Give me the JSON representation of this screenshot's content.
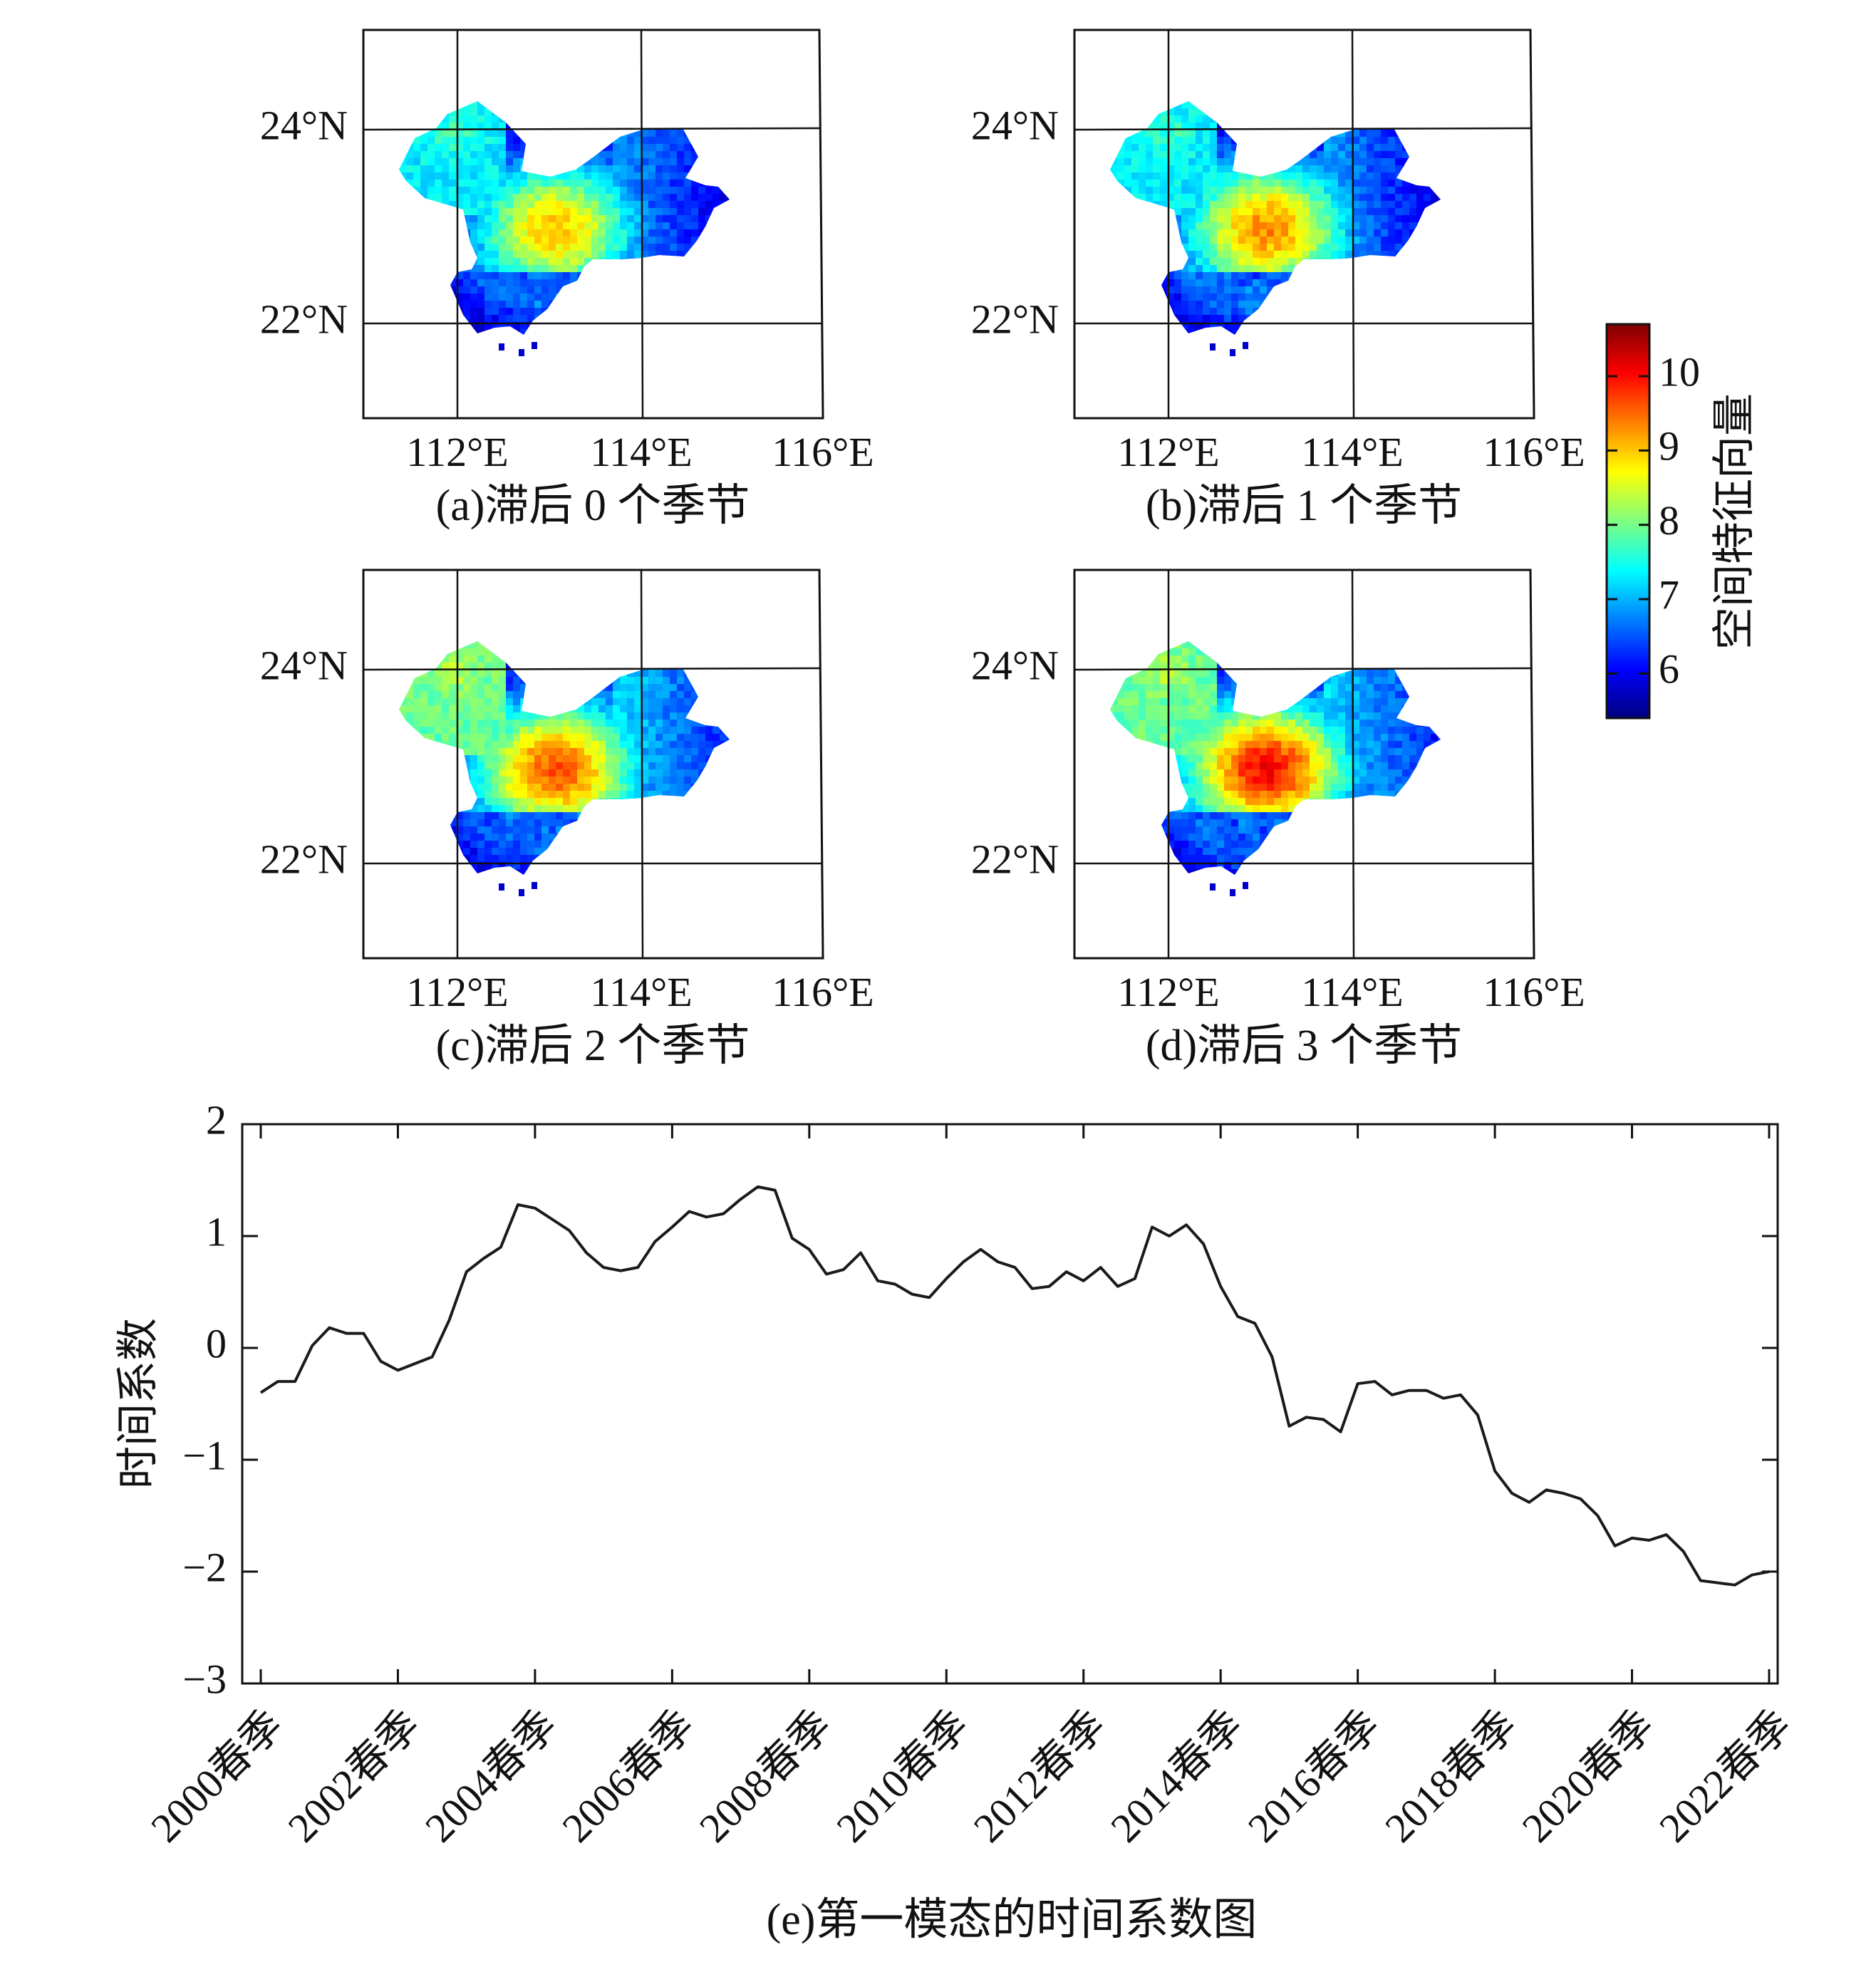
{
  "chart_data": [
    {
      "type": "heatmap",
      "panel": "a",
      "caption": "(a)滞后 0 个季节",
      "x_ticks": [
        "112°E",
        "114°E",
        "116°E"
      ],
      "y_ticks": [
        "24°N",
        "22°N"
      ],
      "center_peak": 9.0
    },
    {
      "type": "heatmap",
      "panel": "b",
      "caption": "(b)滞后 1 个季节",
      "x_ticks": [
        "112°E",
        "114°E",
        "116°E"
      ],
      "y_ticks": [
        "24°N",
        "22°N"
      ],
      "center_peak": 9.3
    },
    {
      "type": "heatmap",
      "panel": "c",
      "caption": "(c)滞后 2 个季节",
      "x_ticks": [
        "112°E",
        "114°E",
        "116°E"
      ],
      "y_ticks": [
        "24°N",
        "22°N"
      ],
      "center_peak": 9.6
    },
    {
      "type": "heatmap",
      "panel": "d",
      "caption": "(d)滞后 3 个季节",
      "x_ticks": [
        "112°E",
        "114°E",
        "116°E"
      ],
      "y_ticks": [
        "24°N",
        "22°N"
      ],
      "center_peak": 10.0
    },
    {
      "type": "line",
      "caption": "(e)第一模态的时间系数图",
      "ylabel": "时间系数",
      "ylim": [
        -3,
        2
      ],
      "y_ticks": [
        "2",
        "1",
        "0",
        "−1",
        "−2",
        "−3"
      ],
      "x_ticks": [
        "2000春季",
        "2002春季",
        "2004春季",
        "2006春季",
        "2008春季",
        "2010春季",
        "2012春季",
        "2014春季",
        "2016春季",
        "2018春季",
        "2020春季",
        "2022春季"
      ],
      "series": [
        {
          "name": "第一模态",
          "values": [
            -0.4,
            -0.3,
            -0.3,
            0.02,
            0.18,
            0.13,
            0.13,
            -0.12,
            -0.2,
            -0.14,
            -0.08,
            0.25,
            0.68,
            0.8,
            0.9,
            1.28,
            1.25,
            1.15,
            1.05,
            0.85,
            0.72,
            0.69,
            0.72,
            0.95,
            1.08,
            1.22,
            1.17,
            1.2,
            1.33,
            1.44,
            1.41,
            0.98,
            0.88,
            0.66,
            0.7,
            0.85,
            0.6,
            0.57,
            0.48,
            0.45,
            0.62,
            0.77,
            0.88,
            0.77,
            0.72,
            0.53,
            0.55,
            0.68,
            0.6,
            0.72,
            0.55,
            0.62,
            1.08,
            1.0,
            1.1,
            0.93,
            0.55,
            0.28,
            0.22,
            -0.08,
            -0.7,
            -0.62,
            -0.64,
            -0.75,
            -0.32,
            -0.3,
            -0.42,
            -0.38,
            -0.38,
            -0.45,
            -0.42,
            -0.6,
            -1.1,
            -1.3,
            -1.38,
            -1.27,
            -1.3,
            -1.35,
            -1.5,
            -1.77,
            -1.7,
            -1.72,
            -1.67,
            -1.82,
            -2.08,
            -2.1,
            -2.12,
            -2.03,
            -2.0
          ]
        }
      ]
    }
  ],
  "colorbar": {
    "label": "空间特征向量",
    "ticks": [
      10,
      9,
      8,
      7,
      6
    ],
    "range": [
      5.4,
      10.7
    ],
    "colors": [
      "#00007f",
      "#0000ff",
      "#007fff",
      "#00ffff",
      "#7fff7f",
      "#ffff00",
      "#ff7f00",
      "#ff0000",
      "#7f0000"
    ]
  }
}
